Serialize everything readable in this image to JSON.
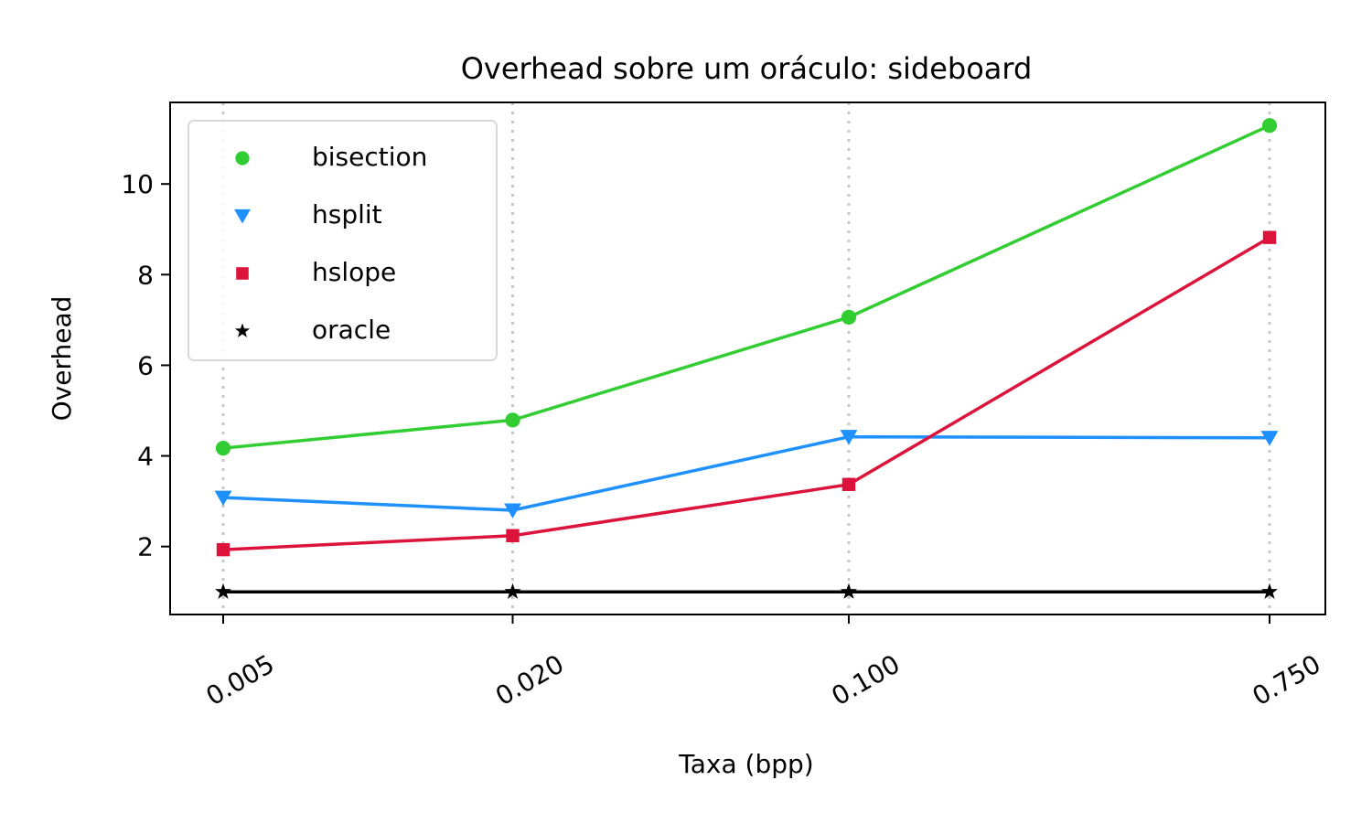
{
  "chart_data": {
    "type": "line",
    "title": "Overhead sobre um oráculo: sideboard",
    "xlabel": "Taxa (bpp)",
    "ylabel": "Overhead",
    "categories": [
      "0.005",
      "0.020",
      "0.100",
      "0.750"
    ],
    "x_scale": "log",
    "x_values": [
      0.005,
      0.02,
      0.1,
      0.75
    ],
    "ylim": [
      0.5,
      11.8
    ],
    "yticks": [
      2,
      4,
      6,
      8,
      10
    ],
    "grid": "x-dotted",
    "legend_position": "top-left",
    "series": [
      {
        "name": "bisection",
        "color": "#32cd32",
        "marker": "circle",
        "values": [
          4.17,
          4.79,
          7.06,
          11.29
        ]
      },
      {
        "name": "hsplit",
        "color": "#1e90ff",
        "marker": "triangle-down",
        "values": [
          3.08,
          2.8,
          4.42,
          4.4
        ]
      },
      {
        "name": "hslope",
        "color": "#dc143c",
        "marker": "square",
        "values": [
          1.93,
          2.24,
          3.37,
          8.82
        ]
      },
      {
        "name": "oracle",
        "color": "#000000",
        "marker": "star",
        "values": [
          1.0,
          1.0,
          1.0,
          1.0
        ]
      }
    ]
  }
}
